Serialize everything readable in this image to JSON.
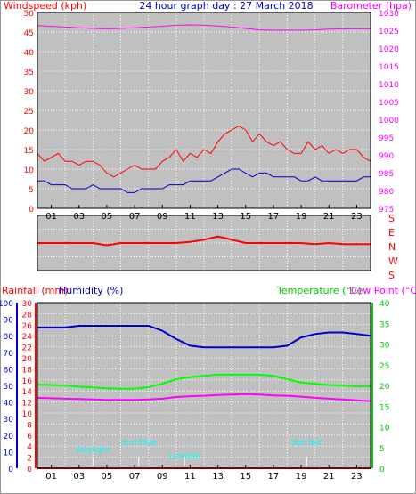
{
  "title": "24 hour graph day : 27 March 2018",
  "panel1": {
    "left_label": "Windspeed (kph)",
    "right_label": "Barometer (hpa)",
    "left_ticks": [
      "0",
      "5",
      "10",
      "15",
      "20",
      "25",
      "30",
      "35",
      "40",
      "45",
      "50"
    ],
    "right_ticks": [
      "975",
      "980",
      "985",
      "990",
      "995",
      "1000",
      "1005",
      "1010",
      "1015",
      "1020",
      "1025",
      "1030"
    ]
  },
  "panel2": {
    "dir_letters": [
      "S",
      "E",
      "N",
      "W",
      "S"
    ]
  },
  "panel3": {
    "rain_label": "Rainfall (mm)",
    "hum_label": "Humidity (%)",
    "temp_label": "Temperature (°C)",
    "dew_label": "Dew Point (°C)",
    "hum_ticks": [
      "0",
      "10",
      "20",
      "30",
      "40",
      "50",
      "60",
      "70",
      "80",
      "90",
      "100"
    ],
    "rain_ticks": [
      "0",
      "2",
      "4",
      "6",
      "8",
      "10",
      "12",
      "14",
      "16",
      "18",
      "20",
      "22",
      "24",
      "26",
      "28",
      "30"
    ],
    "temp_ticks": [
      "0",
      "5",
      "10",
      "15",
      "20",
      "25",
      "30",
      "35",
      "40"
    ],
    "events": [
      {
        "label": "Daylight",
        "hour": 4.0
      },
      {
        "label": "Sun Rise",
        "hour": 7.3
      },
      {
        "label": "Lowtide",
        "hour": 10.6
      },
      {
        "label": "Sun Set",
        "hour": 19.4
      }
    ]
  },
  "x_ticks": [
    "01",
    "03",
    "05",
    "07",
    "09",
    "11",
    "13",
    "15",
    "17",
    "19",
    "21",
    "23"
  ],
  "colors": {
    "plot_bg": "#c0c0c0",
    "wind_gust": "#ff0000",
    "wind_avg": "#0000c8",
    "barometer": "#ff00ff",
    "direction": "#ff0000",
    "humidity": "#0000c8",
    "temperature": "#00ff00",
    "dewpoint": "#ff00ff",
    "rain_axis": "#ff0000",
    "hum_axis": "#0000c8",
    "temp_axis": "#00c800",
    "event_text": "#00ffff"
  },
  "chart_data": [
    {
      "type": "line",
      "x_label": "hour",
      "xlim": [
        0,
        24
      ],
      "series": [
        {
          "axis": "wind",
          "x": [
            0,
            0.5,
            1,
            1.5,
            2,
            2.5,
            3,
            3.5,
            4,
            4.5,
            5,
            5.5,
            6,
            6.5,
            7,
            7.5,
            8,
            8.5,
            9,
            9.5,
            10,
            10.5,
            11,
            11.5,
            12,
            12.5,
            13,
            13.5,
            14,
            14.5,
            15,
            15.5,
            16,
            16.5,
            17,
            17.5,
            18,
            18.5,
            19,
            19.5,
            20,
            20.5,
            21,
            21.5,
            22,
            22.5,
            23,
            23.5,
            24
          ],
          "y": [
            14,
            12,
            13,
            14,
            12,
            12,
            11,
            12,
            12,
            11,
            9,
            8,
            9,
            10,
            11,
            10,
            10,
            10,
            12,
            13,
            15,
            12,
            14,
            13,
            15,
            14,
            17,
            19,
            20,
            21,
            20,
            17,
            19,
            17,
            16,
            17,
            15,
            14,
            14,
            17,
            15,
            16,
            14,
            15,
            14,
            15,
            15,
            13,
            12
          ]
        },
        {
          "axis": "wind",
          "x": [
            0,
            0.5,
            1,
            1.5,
            2,
            2.5,
            3,
            3.5,
            4,
            4.5,
            5,
            5.5,
            6,
            6.5,
            7,
            7.5,
            8,
            8.5,
            9,
            9.5,
            10,
            10.5,
            11,
            11.5,
            12,
            12.5,
            13,
            13.5,
            14,
            14.5,
            15,
            15.5,
            16,
            16.5,
            17,
            17.5,
            18,
            18.5,
            19,
            19.5,
            20,
            20.5,
            21,
            21.5,
            22,
            22.5,
            23,
            23.5,
            24
          ],
          "y": [
            7,
            7,
            6,
            6,
            6,
            5,
            5,
            5,
            6,
            5,
            5,
            5,
            5,
            4,
            4,
            5,
            5,
            5,
            5,
            6,
            6,
            6,
            7,
            7,
            7,
            7,
            8,
            9,
            10,
            10,
            9,
            8,
            9,
            9,
            8,
            8,
            8,
            8,
            7,
            7,
            8,
            7,
            7,
            7,
            7,
            7,
            7,
            8,
            8
          ]
        },
        {
          "axis": "barometer",
          "x": [
            0,
            1,
            2,
            3,
            4,
            5,
            6,
            7,
            8,
            9,
            10,
            11,
            12,
            13,
            14,
            15,
            16,
            17,
            18,
            19,
            20,
            21,
            22,
            23,
            24
          ],
          "y": [
            1026.3,
            1026.1,
            1025.9,
            1025.7,
            1025.5,
            1025.4,
            1025.5,
            1025.7,
            1025.9,
            1026.1,
            1026.4,
            1026.5,
            1026.4,
            1026.2,
            1025.9,
            1025.5,
            1025.1,
            1025.0,
            1025.0,
            1025.0,
            1025.1,
            1025.3,
            1025.4,
            1025.4,
            1025.4
          ]
        }
      ]
    },
    {
      "type": "line",
      "x_label": "hour",
      "xlim": [
        0,
        24
      ],
      "series": [
        {
          "axis": "direction",
          "x": [
            0,
            1,
            2,
            3,
            4,
            5,
            6,
            7,
            8,
            9,
            10,
            11,
            12,
            13,
            14,
            15,
            16,
            17,
            18,
            19,
            20,
            21,
            22,
            23,
            24
          ],
          "y": [
            0.5,
            0.5,
            0.5,
            0.5,
            0.5,
            0.46,
            0.5,
            0.5,
            0.5,
            0.5,
            0.5,
            0.52,
            0.56,
            0.62,
            0.56,
            0.5,
            0.5,
            0.5,
            0.5,
            0.5,
            0.48,
            0.5,
            0.48,
            0.48,
            0.48
          ]
        }
      ]
    },
    {
      "type": "line",
      "x_label": "hour",
      "xlim": [
        0,
        24
      ],
      "series": [
        {
          "axis": "humidity",
          "x": [
            0,
            1,
            2,
            3,
            4,
            5,
            6,
            7,
            8,
            9,
            10,
            11,
            12,
            13,
            14,
            15,
            16,
            17,
            18,
            19,
            20,
            21,
            22,
            23,
            24
          ],
          "y": [
            85,
            85,
            85,
            86,
            86,
            86,
            86,
            86,
            86,
            83,
            78,
            74,
            73,
            73,
            73,
            73,
            73,
            73,
            74,
            79,
            81,
            82,
            82,
            81,
            80
          ]
        },
        {
          "axis": "temperature",
          "x": [
            0,
            1,
            2,
            3,
            4,
            5,
            6,
            7,
            8,
            9,
            10,
            11,
            12,
            13,
            14,
            15,
            16,
            17,
            18,
            19,
            20,
            21,
            22,
            23,
            24
          ],
          "y": [
            20.2,
            20.1,
            20.0,
            19.7,
            19.5,
            19.3,
            19.2,
            19.2,
            19.6,
            20.4,
            21.5,
            22.0,
            22.3,
            22.6,
            22.6,
            22.6,
            22.6,
            22.3,
            21.5,
            20.7,
            20.4,
            20.1,
            20.0,
            19.8,
            19.8
          ]
        },
        {
          "axis": "temperature",
          "x": [
            0,
            1,
            2,
            3,
            4,
            5,
            6,
            7,
            8,
            9,
            10,
            11,
            12,
            13,
            14,
            15,
            16,
            17,
            18,
            19,
            20,
            21,
            22,
            23,
            24
          ],
          "y": [
            17.0,
            16.9,
            16.8,
            16.7,
            16.6,
            16.5,
            16.5,
            16.5,
            16.6,
            16.8,
            17.2,
            17.4,
            17.5,
            17.7,
            17.8,
            17.9,
            17.8,
            17.6,
            17.5,
            17.3,
            17.0,
            16.8,
            16.6,
            16.4,
            16.2
          ]
        },
        {
          "axis": "rainfall",
          "x": [
            0,
            24
          ],
          "y": [
            0,
            0
          ]
        }
      ]
    }
  ]
}
